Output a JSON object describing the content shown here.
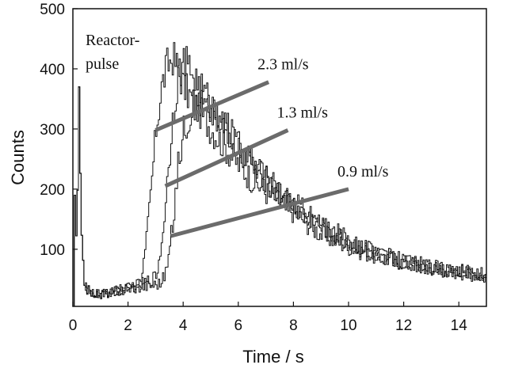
{
  "chart_data": {
    "type": "line",
    "title": "",
    "xlabel": "Time / s",
    "ylabel": "Counts",
    "xlim": [
      0,
      15
    ],
    "ylim": [
      5,
      500
    ],
    "xticks": [
      0,
      2,
      4,
      6,
      8,
      10,
      12,
      14
    ],
    "yticks": [
      100,
      200,
      300,
      400,
      500
    ],
    "grid": false,
    "annotations": {
      "reactor_pulse": [
        "Reactor-",
        "pulse"
      ]
    },
    "series": [
      {
        "name": "2.3 ml/s",
        "line_start": [
          3.0,
          298
        ],
        "line_end": [
          7.1,
          378
        ],
        "points": [
          [
            0.0,
            5
          ],
          [
            0.05,
            190
          ],
          [
            0.12,
            95
          ],
          [
            0.2,
            370
          ],
          [
            0.28,
            140
          ],
          [
            0.4,
            40
          ],
          [
            0.6,
            28
          ],
          [
            1.0,
            25
          ],
          [
            1.5,
            30
          ],
          [
            2.0,
            35
          ],
          [
            2.4,
            45
          ],
          [
            2.6,
            90
          ],
          [
            2.8,
            190
          ],
          [
            3.0,
            300
          ],
          [
            3.2,
            370
          ],
          [
            3.4,
            405
          ],
          [
            3.6,
            420
          ],
          [
            3.8,
            400
          ],
          [
            4.0,
            370
          ],
          [
            4.5,
            335
          ],
          [
            5.0,
            300
          ],
          [
            5.5,
            270
          ],
          [
            6.0,
            240
          ],
          [
            6.5,
            215
          ],
          [
            7.0,
            195
          ],
          [
            7.5,
            180
          ],
          [
            8.0,
            162
          ],
          [
            9.0,
            125
          ],
          [
            10.0,
            105
          ],
          [
            11.0,
            88
          ],
          [
            12.0,
            78
          ],
          [
            13.0,
            68
          ],
          [
            14.0,
            62
          ],
          [
            15.0,
            55
          ]
        ]
      },
      {
        "name": "1.3 ml/s",
        "line_start": [
          3.35,
          205
        ],
        "line_end": [
          7.8,
          298
        ],
        "points": [
          [
            0.0,
            5
          ],
          [
            0.05,
            190
          ],
          [
            0.12,
            95
          ],
          [
            0.2,
            370
          ],
          [
            0.28,
            140
          ],
          [
            0.4,
            40
          ],
          [
            0.6,
            28
          ],
          [
            1.0,
            25
          ],
          [
            1.5,
            30
          ],
          [
            2.0,
            35
          ],
          [
            2.6,
            45
          ],
          [
            3.0,
            55
          ],
          [
            3.2,
            110
          ],
          [
            3.4,
            210
          ],
          [
            3.6,
            320
          ],
          [
            3.8,
            390
          ],
          [
            4.0,
            410
          ],
          [
            4.3,
            395
          ],
          [
            4.6,
            370
          ],
          [
            5.0,
            340
          ],
          [
            5.5,
            300
          ],
          [
            6.0,
            270
          ],
          [
            6.5,
            240
          ],
          [
            7.0,
            215
          ],
          [
            7.5,
            190
          ],
          [
            8.0,
            172
          ],
          [
            9.0,
            135
          ],
          [
            10.0,
            110
          ],
          [
            11.0,
            90
          ],
          [
            12.0,
            80
          ],
          [
            13.0,
            70
          ],
          [
            14.0,
            63
          ],
          [
            15.0,
            58
          ]
        ]
      },
      {
        "name": "0.9 ml/s",
        "line_start": [
          3.55,
          122
        ],
        "line_end": [
          10.0,
          200
        ],
        "points": [
          [
            0.0,
            5
          ],
          [
            0.05,
            190
          ],
          [
            0.12,
            95
          ],
          [
            0.2,
            370
          ],
          [
            0.28,
            140
          ],
          [
            0.4,
            40
          ],
          [
            0.6,
            28
          ],
          [
            1.0,
            25
          ],
          [
            1.5,
            30
          ],
          [
            2.0,
            35
          ],
          [
            2.8,
            40
          ],
          [
            3.2,
            45
          ],
          [
            3.4,
            70
          ],
          [
            3.6,
            140
          ],
          [
            3.8,
            240
          ],
          [
            4.0,
            300
          ],
          [
            4.3,
            335
          ],
          [
            4.6,
            345
          ],
          [
            5.0,
            330
          ],
          [
            5.5,
            305
          ],
          [
            6.0,
            275
          ],
          [
            6.5,
            245
          ],
          [
            7.0,
            220
          ],
          [
            7.5,
            195
          ],
          [
            8.0,
            178
          ],
          [
            9.0,
            140
          ],
          [
            10.0,
            115
          ],
          [
            11.0,
            92
          ],
          [
            12.0,
            80
          ],
          [
            13.0,
            70
          ],
          [
            14.0,
            62
          ],
          [
            15.0,
            56
          ]
        ]
      }
    ]
  }
}
